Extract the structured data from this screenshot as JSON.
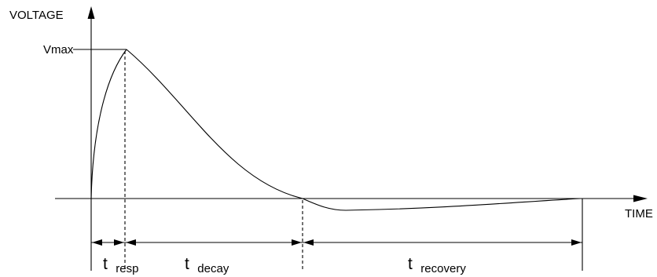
{
  "axes": {
    "y_title": "VOLTAGE",
    "x_title": "TIME",
    "peak_label": "Vmax"
  },
  "intervals": [
    {
      "symbol": "t",
      "subscript": "resp"
    },
    {
      "symbol": "t",
      "subscript": "decay"
    },
    {
      "symbol": "t",
      "subscript": "recovery"
    }
  ],
  "colors": {
    "ink": "#000000",
    "background": "#ffffff"
  }
}
